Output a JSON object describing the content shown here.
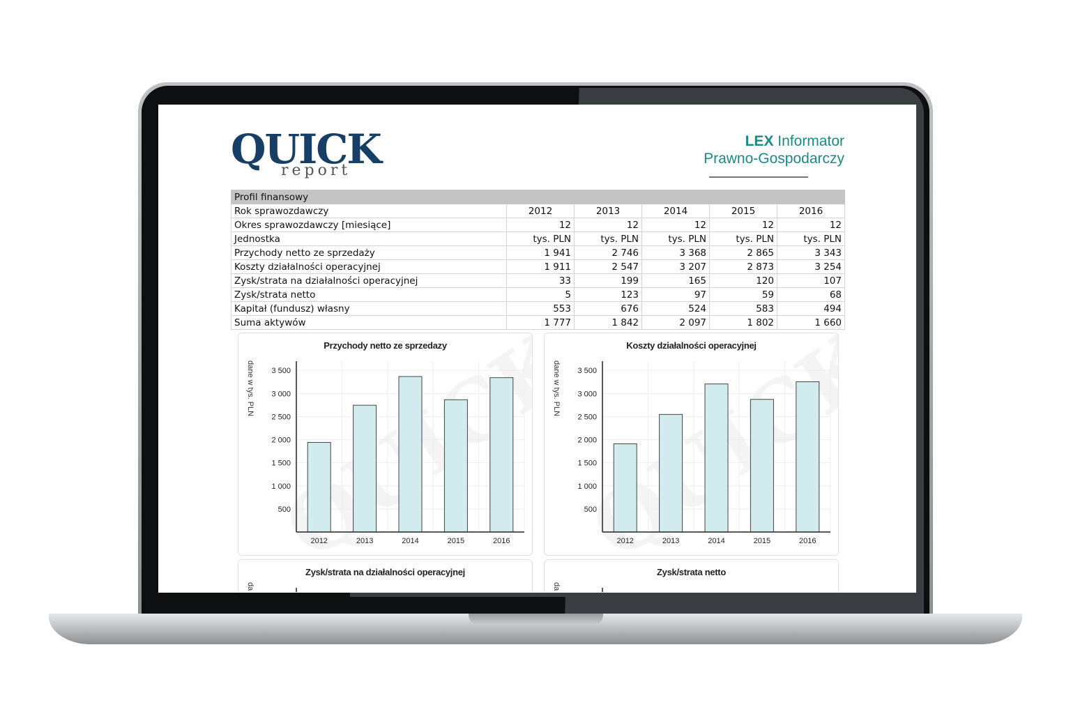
{
  "header": {
    "logo_main": "QUICK",
    "logo_sub": "report",
    "publisher_line1_bold": "LEX",
    "publisher_line1_rest": " Informator",
    "publisher_line2": "Prawno-Gospodarczy"
  },
  "table": {
    "section_title": "Profil finansowy",
    "rows": [
      {
        "label": "Rok sprawozdawczy",
        "values": [
          "2012",
          "2013",
          "2014",
          "2015",
          "2016"
        ]
      },
      {
        "label": "Okres sprawozdawczy [miesiące]",
        "values": [
          "12",
          "12",
          "12",
          "12",
          "12"
        ]
      },
      {
        "label": "Jednostka",
        "values": [
          "tys. PLN",
          "tys. PLN",
          "tys. PLN",
          "tys. PLN",
          "tys. PLN"
        ]
      },
      {
        "label": "Przychody netto ze sprzedaży",
        "values": [
          "1 941",
          "2 746",
          "3 368",
          "2 865",
          "3 343"
        ]
      },
      {
        "label": "Koszty działalności operacyjnej",
        "values": [
          "1 911",
          "2 547",
          "3 207",
          "2 873",
          "3 254"
        ]
      },
      {
        "label": "Zysk/strata na działalności operacyjnej",
        "values": [
          "33",
          "199",
          "165",
          "120",
          "107"
        ]
      },
      {
        "label": "Zysk/strata netto",
        "values": [
          "5",
          "123",
          "97",
          "59",
          "68"
        ]
      },
      {
        "label": "Kapitał (fundusz) własny",
        "values": [
          "553",
          "676",
          "524",
          "583",
          "494"
        ]
      },
      {
        "label": "Suma aktywów",
        "values": [
          "1 777",
          "1 842",
          "2 097",
          "1 802",
          "1 660"
        ]
      }
    ]
  },
  "colors": {
    "bar_fill": "#d2ebef",
    "bar_stroke": "#444444",
    "brand_blue": "#173f66",
    "brand_teal": "#1b8a85",
    "table_header": "#c4c4c4"
  },
  "chart_data": [
    {
      "type": "bar",
      "title": "Przychody netto ze sprzedazy",
      "ylabel": "dane w tys. PLN",
      "categories": [
        "2012",
        "2013",
        "2014",
        "2015",
        "2016"
      ],
      "values": [
        1941,
        2746,
        3368,
        2865,
        3343
      ],
      "yticks": [
        "500",
        "1 000",
        "1 500",
        "2 000",
        "2 500",
        "3 000",
        "3 500"
      ],
      "ylim": [
        0,
        3700
      ],
      "grid": true
    },
    {
      "type": "bar",
      "title": "Koszty działalności operacyjnej",
      "ylabel": "dane w tys. PLN",
      "categories": [
        "2012",
        "2013",
        "2014",
        "2015",
        "2016"
      ],
      "values": [
        1911,
        2547,
        3207,
        2873,
        3254
      ],
      "yticks": [
        "500",
        "1 000",
        "1 500",
        "2 000",
        "2 500",
        "3 000",
        "3 500"
      ],
      "ylim": [
        0,
        3700
      ],
      "grid": true
    },
    {
      "type": "bar",
      "title": "Zysk/strata na działalności operacyjnej",
      "ylabel": "da"
    },
    {
      "type": "bar",
      "title": "Zysk/strata netto",
      "ylabel": "da"
    }
  ]
}
